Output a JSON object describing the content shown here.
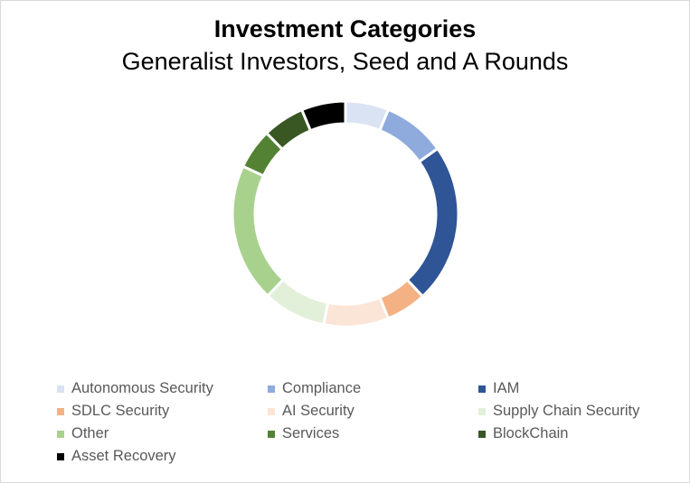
{
  "chart_data": {
    "type": "pie",
    "variant": "doughnut",
    "title": "Investment Categories",
    "subtitle": "Generalist Investors, Seed and A Rounds",
    "legend_position": "bottom",
    "categories": [
      "Autonomous Security",
      "Compliance",
      "IAM",
      "SDLC Security",
      "AI Security",
      "Supply Chain Security",
      "Other",
      "Services",
      "BlockChain",
      "Asset Recovery"
    ],
    "values": [
      5.8,
      8.4,
      21.4,
      5.4,
      8.7,
      8.4,
      18.6,
      5.4,
      5.6,
      5.9
    ],
    "colors": [
      "#dae3f3",
      "#8faadc",
      "#2f5597",
      "#f4b183",
      "#fbe5d6",
      "#e2f0d9",
      "#a9d18e",
      "#548235",
      "#385723",
      "#000000"
    ]
  }
}
